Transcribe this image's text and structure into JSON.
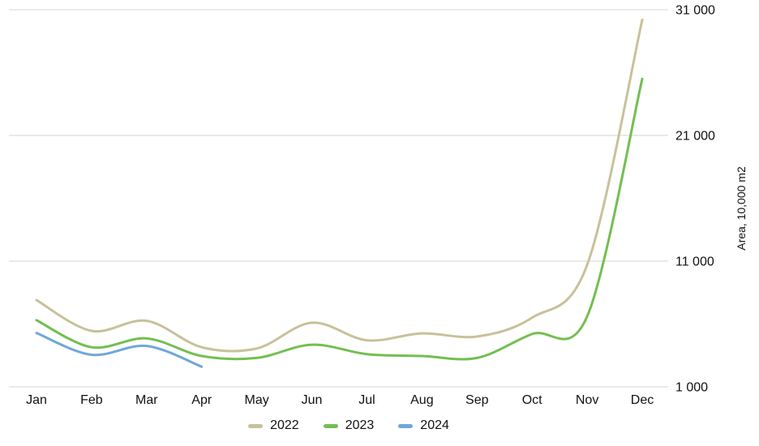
{
  "chart_data": {
    "type": "line",
    "line_style": "spline",
    "categories": [
      "Jan",
      "Feb",
      "Mar",
      "Apr",
      "May",
      "Jun",
      "Jul",
      "Aug",
      "Sep",
      "Oct",
      "Nov",
      "Dec"
    ],
    "series": [
      {
        "name": "2022",
        "color": "#c8c19a",
        "values": [
          7900,
          5450,
          6250,
          4150,
          4050,
          6100,
          4700,
          5250,
          5000,
          6500,
          10700,
          30200
        ]
      },
      {
        "name": "2023",
        "color": "#72bf50",
        "values": [
          6300,
          4150,
          4850,
          3450,
          3300,
          4350,
          3600,
          3450,
          3300,
          5200,
          6600,
          25500
        ]
      },
      {
        "name": "2024",
        "color": "#70a7d8",
        "values": [
          5280,
          3550,
          4250,
          2600
        ]
      }
    ],
    "title": "",
    "xlabel": "",
    "ylabel": "Area, 10,000 m2",
    "ylim": [
      1000,
      31000
    ],
    "y_ticks": [
      1000,
      11000,
      21000,
      31000
    ],
    "y_tick_labels": [
      "1 000",
      "11 000",
      "21 000",
      "31 000"
    ],
    "grid": true,
    "legend_position": "bottom-center"
  },
  "colors": {
    "background": "#ffffff",
    "gridline": "#d6d6d6",
    "text": "#111111"
  }
}
